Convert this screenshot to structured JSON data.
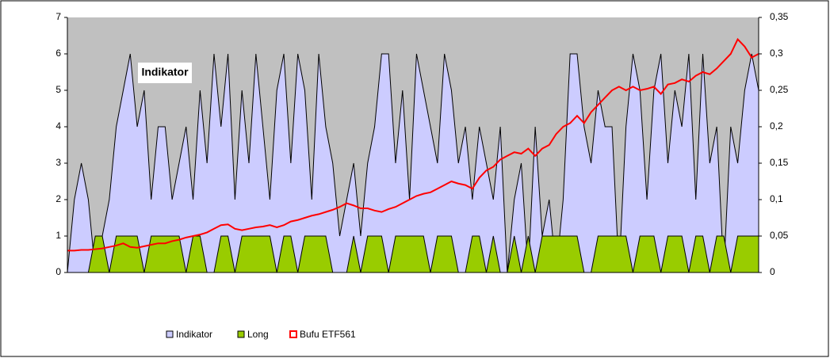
{
  "chart_data": {
    "type": "area-line",
    "annotation": "Indikator",
    "ylim": [
      0,
      7
    ],
    "yticks": [
      0,
      1,
      2,
      3,
      4,
      5,
      6,
      7
    ],
    "y2lim": [
      0,
      0.35
    ],
    "y2ticks": [
      0,
      {
        "value": 0.05,
        "label": "0,05"
      },
      {
        "value": 0.1,
        "label": "0,1"
      },
      {
        "value": 0.15,
        "label": "0,15"
      },
      {
        "value": 0.2,
        "label": "0,2"
      },
      {
        "value": 0.25,
        "label": "0,25"
      },
      {
        "value": 0.3,
        "label": "0,3"
      },
      {
        "value": 0.35,
        "label": "0,35"
      }
    ],
    "series": [
      {
        "name": "Indikator",
        "color": "#ccccff",
        "kind": "area",
        "values": [
          0,
          2,
          3,
          2,
          0,
          1,
          2,
          4,
          5,
          6,
          4,
          5,
          2,
          4,
          4,
          2,
          3,
          4,
          2,
          5,
          3,
          6,
          4,
          6,
          2,
          5,
          3,
          6,
          4,
          2,
          5,
          6,
          3,
          6,
          5,
          2,
          6,
          4,
          3,
          1,
          2,
          3,
          1,
          3,
          4,
          6,
          6,
          3,
          5,
          2,
          6,
          5,
          4,
          3,
          6,
          5,
          3,
          4,
          2,
          4,
          3,
          2,
          4,
          0,
          2,
          3,
          0,
          4,
          1,
          2,
          0,
          2,
          6,
          6,
          4,
          3,
          5,
          4,
          4,
          0,
          4,
          6,
          5,
          2,
          5,
          6,
          3,
          5,
          4,
          6,
          2,
          6,
          3,
          4,
          0,
          4,
          3,
          5,
          6,
          5
        ]
      },
      {
        "name": "Long",
        "color": "#99cc00",
        "kind": "area",
        "values": [
          0,
          0,
          0,
          0,
          1,
          1,
          0,
          1,
          1,
          1,
          1,
          0,
          1,
          1,
          1,
          1,
          1,
          0,
          1,
          1,
          0,
          0,
          1,
          1,
          0,
          1,
          1,
          1,
          1,
          1,
          0,
          1,
          1,
          0,
          1,
          1,
          1,
          1,
          0,
          0,
          0,
          1,
          0,
          1,
          1,
          1,
          0,
          1,
          1,
          1,
          1,
          1,
          0,
          1,
          1,
          1,
          0,
          0,
          1,
          1,
          0,
          1,
          0,
          0,
          1,
          0,
          1,
          0,
          1,
          1,
          1,
          1,
          1,
          1,
          0,
          0,
          1,
          1,
          1,
          1,
          1,
          0,
          1,
          1,
          1,
          0,
          1,
          1,
          1,
          0,
          1,
          1,
          0,
          1,
          1,
          0,
          1,
          1,
          1,
          1
        ]
      },
      {
        "name": "Bufu ETF561",
        "color": "#ff0000",
        "kind": "line",
        "axis": "y2",
        "values": [
          0.03,
          0.03,
          0.031,
          0.031,
          0.032,
          0.033,
          0.035,
          0.037,
          0.04,
          0.035,
          0.034,
          0.036,
          0.038,
          0.04,
          0.04,
          0.043,
          0.045,
          0.048,
          0.05,
          0.052,
          0.055,
          0.06,
          0.065,
          0.066,
          0.06,
          0.058,
          0.06,
          0.062,
          0.063,
          0.065,
          0.062,
          0.065,
          0.07,
          0.072,
          0.075,
          0.078,
          0.08,
          0.083,
          0.086,
          0.09,
          0.095,
          0.092,
          0.088,
          0.088,
          0.085,
          0.083,
          0.087,
          0.09,
          0.095,
          0.1,
          0.105,
          0.108,
          0.11,
          0.115,
          0.12,
          0.125,
          0.122,
          0.12,
          0.115,
          0.13,
          0.14,
          0.145,
          0.155,
          0.16,
          0.165,
          0.163,
          0.17,
          0.16,
          0.17,
          0.175,
          0.19,
          0.2,
          0.205,
          0.215,
          0.205,
          0.22,
          0.23,
          0.24,
          0.25,
          0.255,
          0.25,
          0.255,
          0.25,
          0.252,
          0.255,
          0.245,
          0.258,
          0.26,
          0.265,
          0.262,
          0.27,
          0.275,
          0.272,
          0.28,
          0.29,
          0.3,
          0.32,
          0.31,
          0.295,
          0.3
        ]
      }
    ]
  }
}
